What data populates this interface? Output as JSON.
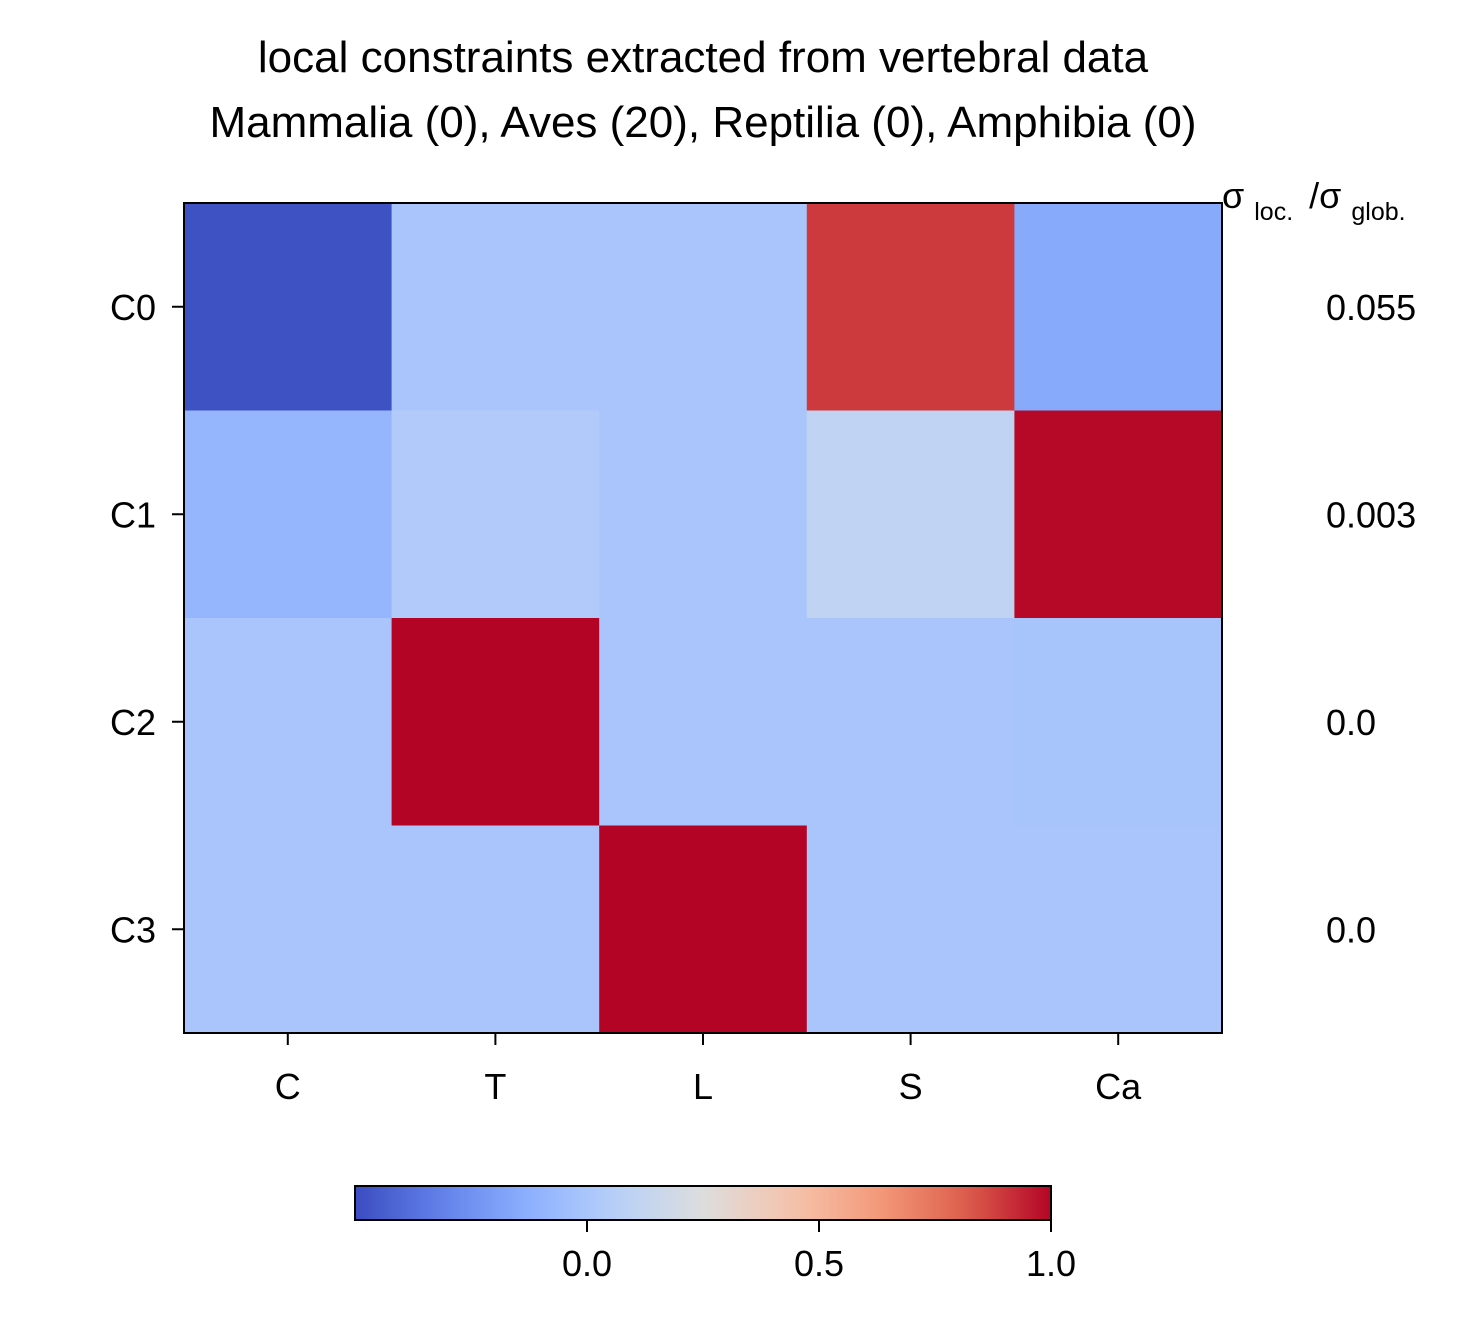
{
  "chart_data": {
    "type": "heatmap",
    "title": "local constraints extracted from vertebral data",
    "subtitle": "Mammalia (0), Aves (20), Reptilia (0), Amphibia (0)",
    "x_categories": [
      "C",
      "T",
      "L",
      "S",
      "Ca"
    ],
    "y_categories": [
      "C0",
      "C1",
      "C2",
      "C3"
    ],
    "values": [
      [
        -0.48,
        0.0,
        0.0,
        0.89,
        -0.15
      ],
      [
        -0.09,
        0.03,
        0.0,
        0.11,
        0.99
      ],
      [
        0.0,
        1.0,
        0.0,
        0.0,
        -0.01
      ],
      [
        0.0,
        0.0,
        1.0,
        0.0,
        0.0
      ]
    ],
    "colormap": "coolwarm",
    "vmin": -0.5,
    "vmax": 1.0,
    "colorbar": {
      "ticks": [
        0.0,
        0.5,
        1.0
      ],
      "tick_labels": [
        "0.0",
        "0.5",
        "1.0"
      ],
      "orientation": "horizontal",
      "placement": "bottom"
    },
    "right_annotation": {
      "header_main1": "σ",
      "header_sub1": "loc.",
      "header_main2": "/σ",
      "header_sub2": "glob.",
      "values": [
        "0.055",
        "0.003",
        "0.0",
        "0.0"
      ]
    },
    "grid": false
  }
}
